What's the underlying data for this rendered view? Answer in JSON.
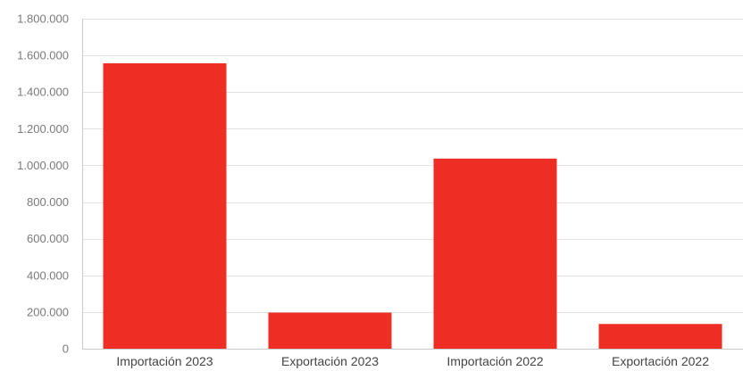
{
  "chart_data": {
    "type": "bar",
    "title": "",
    "xlabel": "",
    "ylabel": "",
    "categories": [
      "Importación 2023",
      "Exportación 2023",
      "Importación 2022",
      "Exportación 2022"
    ],
    "values": [
      1557000,
      197000,
      1037000,
      135000
    ],
    "ylim": [
      0,
      1800000
    ],
    "yticks": [
      0,
      200000,
      400000,
      600000,
      800000,
      1000000,
      1200000,
      1400000,
      1600000,
      1800000
    ],
    "ytick_labels": [
      "0",
      "200.000",
      "400.000",
      "600.000",
      "800.000",
      "1.000.000",
      "1.200.000",
      "1.400.000",
      "1.600.000",
      "1.800.000"
    ],
    "grid": true,
    "legend": "none",
    "colors": {
      "bar": "#ee2e24",
      "grid": "#e1e1e1",
      "axis": "#c8c8c8"
    }
  }
}
